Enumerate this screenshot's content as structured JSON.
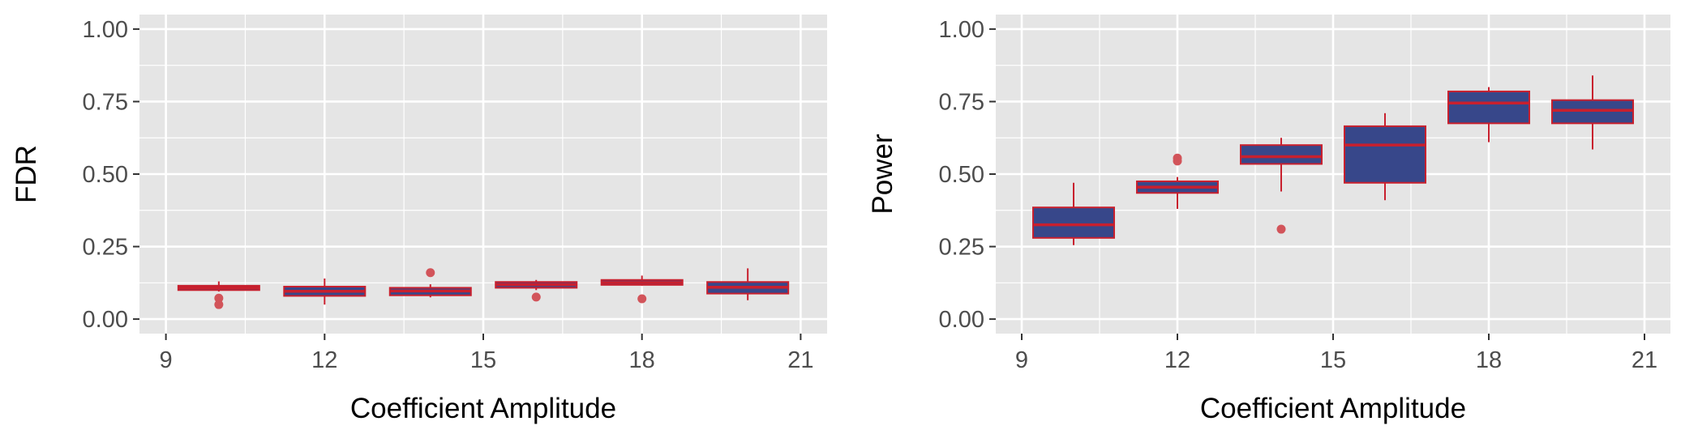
{
  "chart_data": [
    {
      "type": "box",
      "xlabel": "Coefficient Amplitude",
      "ylabel": "FDR",
      "xlim": [
        8.5,
        21.5
      ],
      "ylim": [
        -0.05,
        1.05
      ],
      "xticks": [
        9,
        12,
        15,
        18,
        21
      ],
      "xtick_labels": [
        "9",
        "12",
        "15",
        "18",
        "21"
      ],
      "yticks": [
        0,
        0.25,
        0.5,
        0.75,
        1
      ],
      "ytick_labels": [
        "0.00",
        "0.25",
        "0.50",
        "0.75",
        "1.00"
      ],
      "grid": true,
      "boxes": [
        {
          "x": 10,
          "q1": 0.1,
          "median": 0.108,
          "q3": 0.115,
          "whisker_low": 0.095,
          "whisker_high": 0.13,
          "outliers": [
            0.072,
            0.05
          ]
        },
        {
          "x": 12,
          "q1": 0.08,
          "median": 0.096,
          "q3": 0.112,
          "whisker_low": 0.05,
          "whisker_high": 0.14,
          "outliers": []
        },
        {
          "x": 14,
          "q1": 0.082,
          "median": 0.097,
          "q3": 0.108,
          "whisker_low": 0.075,
          "whisker_high": 0.12,
          "outliers": [
            0.16
          ]
        },
        {
          "x": 16,
          "q1": 0.108,
          "median": 0.119,
          "q3": 0.128,
          "whisker_low": 0.1,
          "whisker_high": 0.135,
          "outliers": [
            0.076
          ]
        },
        {
          "x": 18,
          "q1": 0.118,
          "median": 0.126,
          "q3": 0.135,
          "whisker_low": 0.115,
          "whisker_high": 0.15,
          "outliers": [
            0.07
          ]
        },
        {
          "x": 20,
          "q1": 0.088,
          "median": 0.11,
          "q3": 0.128,
          "whisker_low": 0.065,
          "whisker_high": 0.175,
          "outliers": []
        }
      ]
    },
    {
      "type": "box",
      "xlabel": "Coefficient Amplitude",
      "ylabel": "Power",
      "xlim": [
        8.5,
        21.5
      ],
      "ylim": [
        -0.05,
        1.05
      ],
      "xticks": [
        9,
        12,
        15,
        18,
        21
      ],
      "xtick_labels": [
        "9",
        "12",
        "15",
        "18",
        "21"
      ],
      "yticks": [
        0,
        0.25,
        0.5,
        0.75,
        1
      ],
      "ytick_labels": [
        "0.00",
        "0.25",
        "0.50",
        "0.75",
        "1.00"
      ],
      "grid": true,
      "boxes": [
        {
          "x": 10,
          "q1": 0.28,
          "median": 0.325,
          "q3": 0.385,
          "whisker_low": 0.255,
          "whisker_high": 0.47,
          "outliers": []
        },
        {
          "x": 12,
          "q1": 0.435,
          "median": 0.455,
          "q3": 0.475,
          "whisker_low": 0.38,
          "whisker_high": 0.49,
          "outliers": [
            0.555,
            0.545
          ]
        },
        {
          "x": 14,
          "q1": 0.535,
          "median": 0.56,
          "q3": 0.6,
          "whisker_low": 0.44,
          "whisker_high": 0.625,
          "outliers": [
            0.31
          ]
        },
        {
          "x": 16,
          "q1": 0.47,
          "median": 0.6,
          "q3": 0.665,
          "whisker_low": 0.41,
          "whisker_high": 0.71,
          "outliers": []
        },
        {
          "x": 18,
          "q1": 0.675,
          "median": 0.745,
          "q3": 0.785,
          "whisker_low": 0.61,
          "whisker_high": 0.8,
          "outliers": []
        },
        {
          "x": 20,
          "q1": 0.675,
          "median": 0.72,
          "q3": 0.755,
          "whisker_low": 0.585,
          "whisker_high": 0.84,
          "outliers": []
        }
      ]
    }
  ],
  "style": {
    "panel_background": "#e5e5e5",
    "grid_color": "#ffffff",
    "box_fill": "#37478a",
    "box_line": "#c8202e",
    "outlier_color": "#d2545a",
    "tick_text_color": "#4d4d4d",
    "axis_text_color": "#000000"
  }
}
